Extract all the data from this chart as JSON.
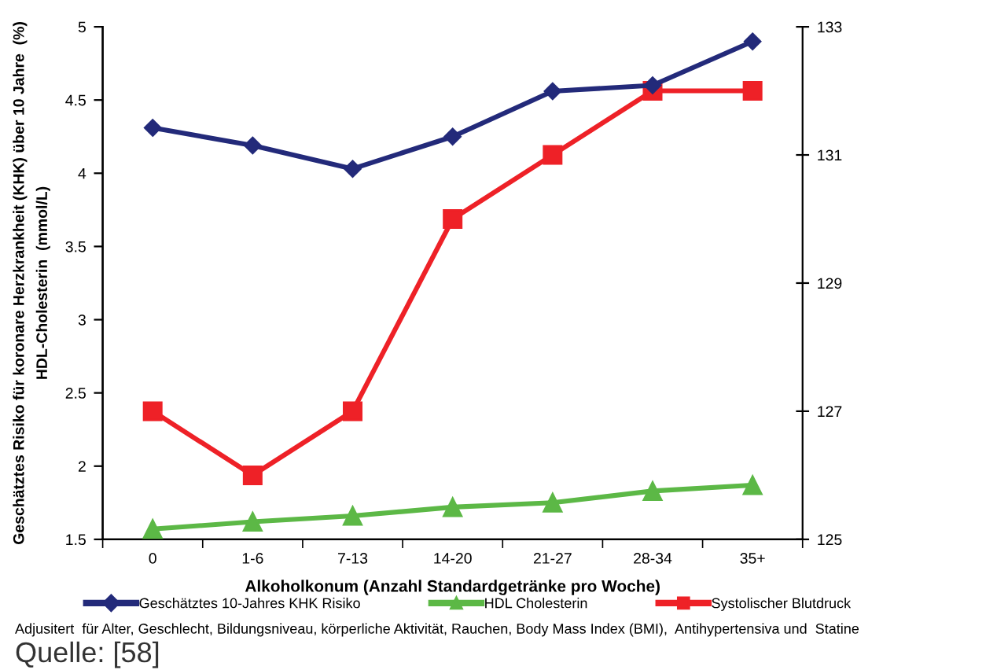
{
  "chart_data": {
    "type": "line",
    "xlabel": "Alkoholkonum (Anzahl Standardgetränke pro Woche)",
    "ylabel": "Geschätztes Risiko für koronare Herzkrankheit (KHK) über 10 Jahre  (%)\nHDL-Cholesterin  (mmol/L)",
    "categories": [
      "0",
      "1-6",
      "7-13",
      "14-20",
      "21-27",
      "28-34",
      "35+"
    ],
    "series": [
      {
        "name": "Geschätztes 10-Jahres KHK Risiko",
        "color": "#232a7a",
        "marker": "diamond",
        "values": [
          4.31,
          4.19,
          4.03,
          4.25,
          4.56,
          4.6,
          4.9
        ]
      },
      {
        "name": "HDL Cholesterin",
        "color": "#5cb846",
        "marker": "triangle",
        "values": [
          1.57,
          1.62,
          1.66,
          1.72,
          1.75,
          1.83,
          1.87
        ]
      },
      {
        "name": "Systolischer Blutdruck",
        "color": "#ee2127",
        "marker": "square",
        "axis": "y2",
        "values": [
          127,
          126,
          127,
          130,
          131,
          132,
          132
        ]
      }
    ],
    "ylim": [
      1.5,
      5
    ],
    "yticks": [
      1.5,
      2,
      2.5,
      3,
      3.5,
      4,
      4.5,
      5
    ],
    "y2lim": [
      125,
      133
    ],
    "y2ticks": [
      125,
      127,
      129,
      131,
      133
    ],
    "grid": false,
    "legend": "bottom",
    "annotations": [
      "Adjusitert  für Alter, Geschlecht, Bildungsniveau, körperliche Aktivität, Rauchen, Body Mass Index (BMI),  Antihypertensiva und  Statine",
      "Quelle: [58]"
    ]
  }
}
